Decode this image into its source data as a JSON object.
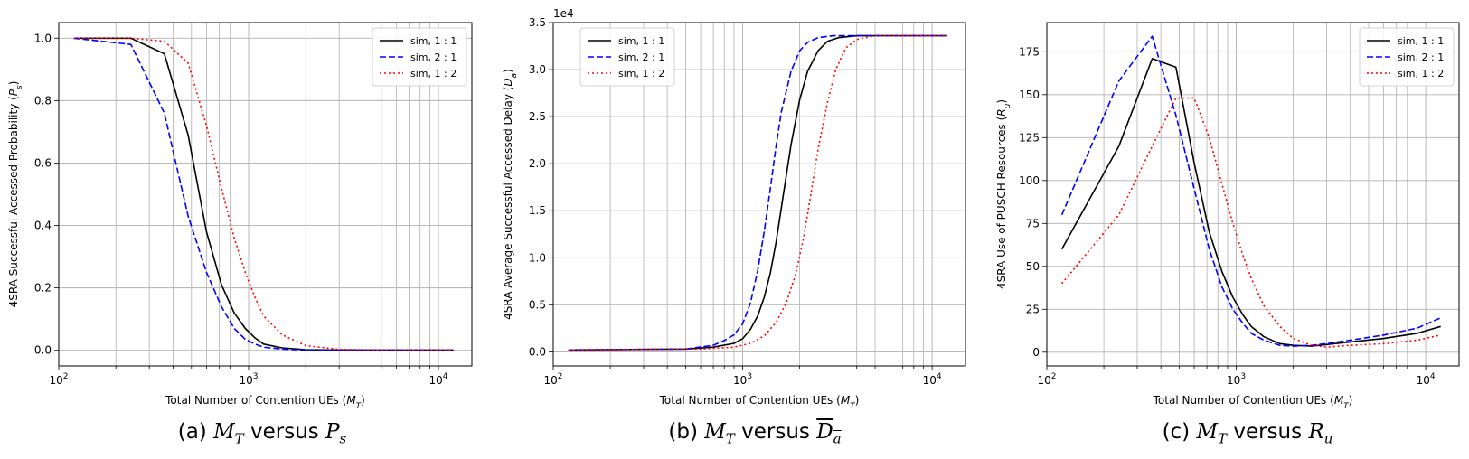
{
  "colors": {
    "black": "#000000",
    "blue": "#0000ff",
    "red": "#ff0000",
    "grid": "#b0b0b0"
  },
  "chart_data": [
    {
      "type": "line",
      "xscale": "log",
      "xlim": [
        100,
        15000
      ],
      "ylim": [
        -0.05,
        1.05
      ],
      "yticks": [
        "0.0",
        "0.2",
        "0.4",
        "0.6",
        "0.8",
        "1.0"
      ],
      "ytick_values": [
        0,
        0.2,
        0.4,
        0.6,
        0.8,
        1.0
      ],
      "xlabel": "Total Number of Contention UEs (M_T)",
      "ylabel": "4SRA Successful Accessed Probability (P_s)",
      "caption": {
        "prefix": "(a) ",
        "var": "M",
        "sub": "T",
        "mid": " versus ",
        "var2": "P",
        "sub2": "s",
        "over2": false
      },
      "legend_loc": "upper right",
      "grid": true,
      "series": [
        {
          "name": "sim, 1 : 1",
          "color": "black",
          "dash": "solid",
          "x": [
            120,
            240,
            360,
            480,
            600,
            720,
            840,
            960,
            1080,
            1200,
            1500,
            2000,
            3000,
            5000,
            8000,
            12000
          ],
          "y": [
            1.0,
            1.0,
            0.95,
            0.69,
            0.38,
            0.21,
            0.12,
            0.07,
            0.04,
            0.02,
            0.008,
            0.002,
            0.001,
            0.001,
            0.001,
            0.001
          ]
        },
        {
          "name": "sim, 2 : 1",
          "color": "blue",
          "dash": "dashed",
          "x": [
            120,
            240,
            360,
            480,
            600,
            720,
            840,
            960,
            1080,
            1200,
            1500,
            2000,
            3000,
            5000,
            8000,
            12000
          ],
          "y": [
            1.0,
            0.98,
            0.76,
            0.43,
            0.25,
            0.14,
            0.07,
            0.035,
            0.02,
            0.01,
            0.004,
            0.001,
            0.001,
            0.001,
            0.001,
            0.001
          ]
        },
        {
          "name": "sim, 1 : 2",
          "color": "red",
          "dash": "dotted",
          "x": [
            120,
            240,
            360,
            480,
            600,
            720,
            840,
            960,
            1080,
            1200,
            1500,
            2000,
            3000,
            5000,
            8000,
            12000
          ],
          "y": [
            1.0,
            1.0,
            0.99,
            0.92,
            0.72,
            0.52,
            0.36,
            0.25,
            0.17,
            0.11,
            0.05,
            0.015,
            0.003,
            0.001,
            0.001,
            0.001
          ]
        }
      ]
    },
    {
      "type": "line",
      "xscale": "log",
      "xlim": [
        100,
        15000
      ],
      "ylim": [
        -0.15,
        3.5
      ],
      "yticks": [
        "0.0",
        "0.5",
        "1.0",
        "1.5",
        "2.0",
        "2.5",
        "3.0",
        "3.5"
      ],
      "ytick_values": [
        0,
        0.5,
        1.0,
        1.5,
        2.0,
        2.5,
        3.0,
        3.5
      ],
      "offset_text": "1e4",
      "xlabel": "Total Number of Contention UEs (M_T)",
      "ylabel": "4SRA Average Successful Accessed Delay (D_a)",
      "caption": {
        "prefix": "(b) ",
        "var": "M",
        "sub": "T",
        "mid": " versus ",
        "var2": "D",
        "sub2": "a",
        "over2": true
      },
      "legend_loc": "upper left",
      "grid": true,
      "series": [
        {
          "name": "sim, 1 : 1",
          "color": "black",
          "dash": "solid",
          "x": [
            120,
            500,
            700,
            900,
            1000,
            1100,
            1200,
            1300,
            1400,
            1500,
            1600,
            1800,
            2000,
            2200,
            2500,
            2800,
            3200,
            4000,
            6000,
            12000
          ],
          "y": [
            0.02,
            0.03,
            0.05,
            0.09,
            0.14,
            0.24,
            0.38,
            0.58,
            0.84,
            1.16,
            1.53,
            2.2,
            2.68,
            2.98,
            3.2,
            3.3,
            3.34,
            3.36,
            3.36,
            3.36
          ]
        },
        {
          "name": "sim, 2 : 1",
          "color": "blue",
          "dash": "dashed",
          "x": [
            120,
            500,
            700,
            800,
            900,
            1000,
            1100,
            1200,
            1300,
            1400,
            1500,
            1600,
            1800,
            2000,
            2200,
            2500,
            3000,
            4000,
            12000
          ],
          "y": [
            0.02,
            0.03,
            0.07,
            0.12,
            0.18,
            0.3,
            0.52,
            0.86,
            1.28,
            1.74,
            2.18,
            2.55,
            2.98,
            3.2,
            3.29,
            3.34,
            3.36,
            3.36,
            3.36
          ]
        },
        {
          "name": "sim, 1 : 2",
          "color": "red",
          "dash": "dotted",
          "x": [
            120,
            600,
            900,
            1100,
            1300,
            1500,
            1700,
            1900,
            2100,
            2300,
            2500,
            2800,
            3100,
            3500,
            4000,
            5000,
            12000
          ],
          "y": [
            0.02,
            0.03,
            0.05,
            0.09,
            0.17,
            0.31,
            0.52,
            0.82,
            1.22,
            1.7,
            2.15,
            2.65,
            3.0,
            3.23,
            3.32,
            3.36,
            3.36
          ]
        }
      ]
    },
    {
      "type": "line",
      "xscale": "log",
      "xlim": [
        100,
        15000
      ],
      "ylim": [
        -8,
        192
      ],
      "yticks": [
        "0",
        "25",
        "50",
        "75",
        "100",
        "125",
        "150",
        "175"
      ],
      "ytick_values": [
        0,
        25,
        50,
        75,
        100,
        125,
        150,
        175
      ],
      "xlabel": "Total Number of Contention UEs (M_T)",
      "ylabel": "4SRA Use of PUSCH Resources (R_u)",
      "caption": {
        "prefix": "(c) ",
        "var": "M",
        "sub": "T",
        "mid": " versus ",
        "var2": "R",
        "sub2": "u",
        "over2": false
      },
      "legend_loc": "upper right",
      "grid": true,
      "series": [
        {
          "name": "sim, 1 : 1",
          "color": "black",
          "dash": "solid",
          "x": [
            120,
            240,
            360,
            480,
            600,
            720,
            840,
            960,
            1080,
            1200,
            1400,
            1700,
            2000,
            2500,
            3000,
            4000,
            6000,
            9000,
            12000
          ],
          "y": [
            60,
            120,
            171,
            166,
            110,
            70,
            47,
            32,
            22,
            15,
            9,
            5,
            4,
            3.5,
            4.5,
            6,
            8,
            11,
            15
          ]
        },
        {
          "name": "sim, 2 : 1",
          "color": "blue",
          "dash": "dashed",
          "x": [
            120,
            240,
            360,
            480,
            600,
            720,
            840,
            960,
            1080,
            1200,
            1400,
            1700,
            2000,
            2500,
            3000,
            4000,
            6000,
            9000,
            12000
          ],
          "y": [
            80,
            158,
            184,
            138,
            95,
            60,
            38,
            25,
            17,
            11,
            7,
            4,
            3.5,
            4,
            5,
            7,
            10,
            14,
            20
          ]
        },
        {
          "name": "sim, 1 : 2",
          "color": "red",
          "dash": "dotted",
          "x": [
            120,
            240,
            360,
            480,
            600,
            720,
            840,
            960,
            1080,
            1200,
            1400,
            1700,
            2000,
            2500,
            3000,
            4000,
            6000,
            9000,
            12000
          ],
          "y": [
            40,
            80,
            120,
            148,
            148,
            125,
            98,
            75,
            57,
            43,
            27,
            15,
            8,
            4,
            3,
            4,
            5,
            7,
            10
          ]
        }
      ]
    }
  ]
}
